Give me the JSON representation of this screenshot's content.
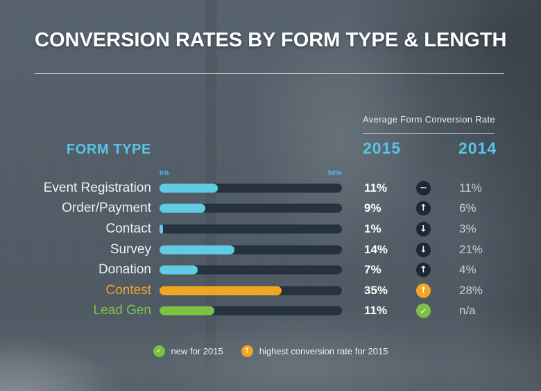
{
  "title": "CONVERSION RATES BY FORM TYPE & LENGTH",
  "table": {
    "group_header": "Average Form Conversion Rate",
    "form_type_header": "FORM TYPE",
    "year_2015_header": "2015",
    "year_2014_header": "2014",
    "scale_min_label": "0%",
    "scale_max_label": "50%"
  },
  "rows": [
    {
      "label": "Event Registration",
      "rate_2015": "11%",
      "rate_2014": "11%",
      "trend": "flat",
      "trend_variant": "dark",
      "bar_color": "cyan",
      "bar_pct": 32,
      "label_color": "default"
    },
    {
      "label": "Order/Payment",
      "rate_2015": "9%",
      "rate_2014": "6%",
      "trend": "up",
      "trend_variant": "dark",
      "bar_color": "cyan",
      "bar_pct": 25,
      "label_color": "default"
    },
    {
      "label": "Contact",
      "rate_2015": "1%",
      "rate_2014": "3%",
      "trend": "down",
      "trend_variant": "dark",
      "bar_color": "cyan",
      "bar_pct": 2,
      "label_color": "default"
    },
    {
      "label": "Survey",
      "rate_2015": "14%",
      "rate_2014": "21%",
      "trend": "down",
      "trend_variant": "dark",
      "bar_color": "cyan",
      "bar_pct": 41,
      "label_color": "default"
    },
    {
      "label": "Donation",
      "rate_2015": "7%",
      "rate_2014": "4%",
      "trend": "up",
      "trend_variant": "dark",
      "bar_color": "cyan",
      "bar_pct": 21,
      "label_color": "default"
    },
    {
      "label": "Contest",
      "rate_2015": "35%",
      "rate_2014": "28%",
      "trend": "up",
      "trend_variant": "orange",
      "bar_color": "orange",
      "bar_pct": 67,
      "label_color": "orange"
    },
    {
      "label": "Lead Gen",
      "rate_2015": "11%",
      "rate_2014": "n/a",
      "trend": "check",
      "trend_variant": "green",
      "bar_color": "green",
      "bar_pct": 30,
      "label_color": "green"
    }
  ],
  "legend": {
    "items": [
      {
        "icon": "check-icon",
        "variant": "green",
        "trend": "check",
        "label": "new for 2015"
      },
      {
        "icon": "up-arrow-icon",
        "variant": "orange",
        "trend": "up",
        "label": "highest conversion rate for 2015"
      }
    ]
  },
  "colors": {
    "accent_cyan": "#55c6e9",
    "bar_cyan": "#62cbe4",
    "bar_orange": "#f2a51f",
    "bar_green": "#7cc142",
    "bar_track": "#26333f",
    "trend_circle_dark": "#1c2833",
    "background_slate": "#4f5d68",
    "text_white": "#ffffff"
  },
  "chart_data": {
    "type": "bar",
    "orientation": "horizontal",
    "title": "CONVERSION RATES BY FORM TYPE & LENGTH",
    "subtitle": "Average Form Conversion Rate",
    "categories": [
      "Event Registration",
      "Order/Payment",
      "Contact",
      "Survey",
      "Donation",
      "Contest",
      "Lead Gen"
    ],
    "series": [
      {
        "name": "2015",
        "values": [
          11,
          9,
          1,
          14,
          7,
          35,
          11
        ]
      },
      {
        "name": "2014",
        "values": [
          11,
          6,
          3,
          21,
          4,
          28,
          null
        ]
      }
    ],
    "value_axis": {
      "min": 0,
      "max": 50,
      "min_label": "0%",
      "max_label": "50%",
      "unit": "%"
    },
    "grid": false,
    "legend_position": "bottom",
    "annotations": [
      {
        "category": "Event Registration",
        "trend_vs_2014": "no change"
      },
      {
        "category": "Order/Payment",
        "trend_vs_2014": "up"
      },
      {
        "category": "Contact",
        "trend_vs_2014": "down"
      },
      {
        "category": "Survey",
        "trend_vs_2014": "down"
      },
      {
        "category": "Donation",
        "trend_vs_2014": "up"
      },
      {
        "category": "Contest",
        "trend_vs_2014": "up",
        "note": "highest conversion rate for 2015"
      },
      {
        "category": "Lead Gen",
        "trend_vs_2014": "n/a",
        "note": "new for 2015"
      }
    ]
  }
}
